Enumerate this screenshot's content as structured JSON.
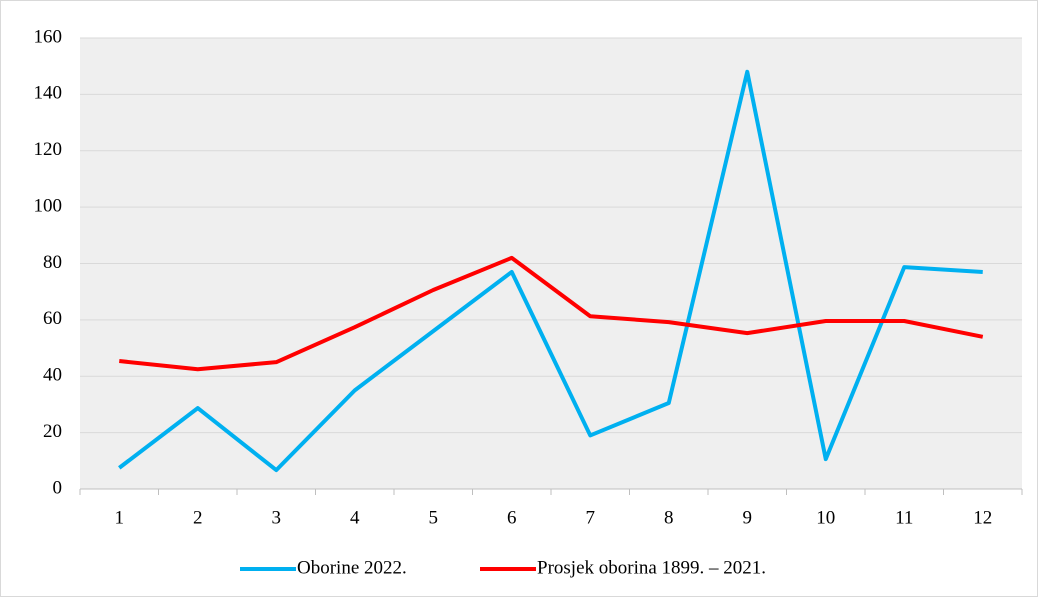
{
  "chart_data": {
    "type": "line",
    "categories": [
      1,
      2,
      3,
      4,
      5,
      6,
      7,
      8,
      9,
      10,
      11,
      12
    ],
    "series": [
      {
        "name": "Oborine 2022.",
        "color": "#00b0f0",
        "values": [
          7.5,
          28.7,
          6.7,
          35,
          56,
          77,
          19,
          30.5,
          148,
          10.6,
          78.7,
          77
        ]
      },
      {
        "name": "Prosjek oborina 1899. – 2021.",
        "color": "#ff0000",
        "values": [
          45.4,
          42.5,
          45,
          57.4,
          70.6,
          82,
          61.3,
          59.2,
          55.3,
          59.6,
          59.6,
          54
        ]
      }
    ],
    "ylim": [
      0,
      160
    ],
    "yticks": [
      0,
      20,
      40,
      60,
      80,
      100,
      120,
      140,
      160
    ],
    "grid": true,
    "legend": "bottom"
  }
}
